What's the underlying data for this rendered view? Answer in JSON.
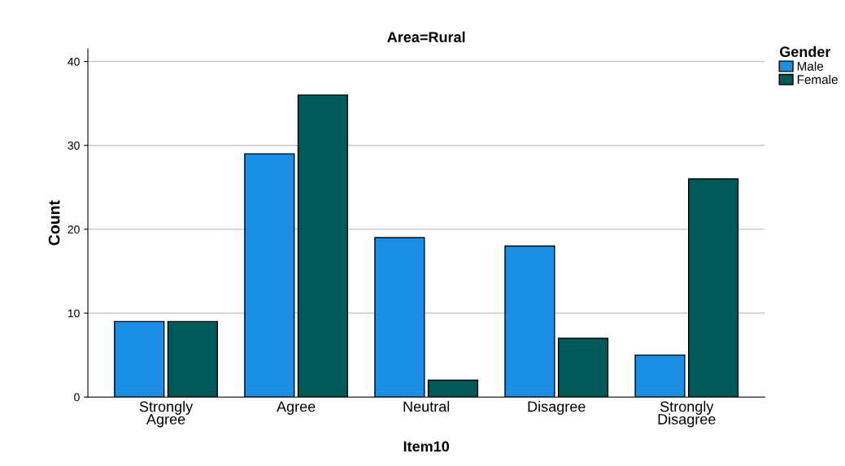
{
  "chart_data": {
    "type": "bar",
    "title": "Area=Rural",
    "xlabel": "Item10",
    "ylabel": "Count",
    "legend_title": "Gender",
    "categories": [
      "Strongly\nAgree",
      "Agree",
      "Neutral",
      "Disagree",
      "Strongly\nDisagree"
    ],
    "series": [
      {
        "name": "Male",
        "color": "#1a8fe3",
        "values": [
          9,
          29,
          19,
          18,
          5
        ]
      },
      {
        "name": "Female",
        "color": "#005a5a",
        "values": [
          9,
          36,
          2,
          7,
          26
        ]
      }
    ],
    "ylim": [
      0,
      41.5
    ],
    "yticks": [
      0,
      10,
      20,
      30,
      40
    ],
    "grid": "y",
    "legend": "top right"
  }
}
